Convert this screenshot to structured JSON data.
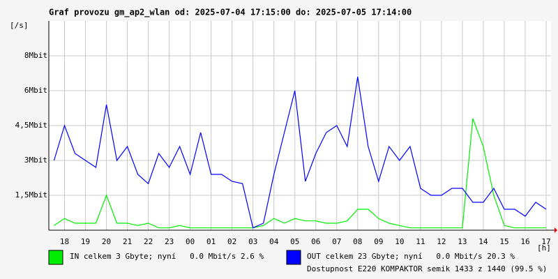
{
  "chart_data": {
    "type": "line",
    "title": "Graf provozu gm_ap2_wlan od: 2025-07-04 17:15:00 do: 2025-07-05 17:14:00",
    "y_label": "[/s]",
    "x_label": "[h]",
    "annotation": "Dostupnost E220 KOMPAKTOR semik 1433 z 1440 (99.5 %)",
    "annotation_color": "#ff0000",
    "grid": true,
    "xlim": [
      "2025-07-04 17:15",
      "2025-07-05 17:14"
    ],
    "ylim": [
      0,
      9
    ],
    "yticks": [
      {
        "value": 1.5,
        "label": "1,5Mbit"
      },
      {
        "value": 3,
        "label": "3Mbit"
      },
      {
        "value": 4.5,
        "label": "4,5Mbit"
      },
      {
        "value": 6,
        "label": "6Mbit"
      },
      {
        "value": 7.5,
        "label": "8Mbit"
      }
    ],
    "xticks": [
      {
        "value": "2025-07-04 18:00",
        "label": "18"
      },
      {
        "value": "2025-07-04 19:00",
        "label": "19"
      },
      {
        "value": "2025-07-04 20:00",
        "label": "20"
      },
      {
        "value": "2025-07-04 21:00",
        "label": "21"
      },
      {
        "value": "2025-07-04 22:00",
        "label": "22"
      },
      {
        "value": "2025-07-04 23:00",
        "label": "23"
      },
      {
        "value": "2025-07-05 00:00",
        "label": "00"
      },
      {
        "value": "2025-07-05 01:00",
        "label": "01"
      },
      {
        "value": "2025-07-05 02:00",
        "label": "02"
      },
      {
        "value": "2025-07-05 03:00",
        "label": "03"
      },
      {
        "value": "2025-07-05 04:00",
        "label": "04"
      },
      {
        "value": "2025-07-05 05:00",
        "label": "05"
      },
      {
        "value": "2025-07-05 06:00",
        "label": "06"
      },
      {
        "value": "2025-07-05 07:00",
        "label": "07"
      },
      {
        "value": "2025-07-05 08:00",
        "label": "08"
      },
      {
        "value": "2025-07-05 09:00",
        "label": "09"
      },
      {
        "value": "2025-07-05 10:00",
        "label": "10"
      },
      {
        "value": "2025-07-05 11:00",
        "label": "11"
      },
      {
        "value": "2025-07-05 12:00",
        "label": "12"
      },
      {
        "value": "2025-07-05 13:00",
        "label": "13"
      },
      {
        "value": "2025-07-05 14:00",
        "label": "14"
      },
      {
        "value": "2025-07-05 15:00",
        "label": "15"
      },
      {
        "value": "2025-07-05 16:00",
        "label": "16"
      },
      {
        "value": "2025-07-05 17:00",
        "label": "17"
      }
    ],
    "x": [
      "2025-07-04 17:30",
      "2025-07-04 18:00",
      "2025-07-04 18:30",
      "2025-07-04 19:00",
      "2025-07-04 19:30",
      "2025-07-04 20:00",
      "2025-07-04 20:30",
      "2025-07-04 21:00",
      "2025-07-04 21:30",
      "2025-07-04 22:00",
      "2025-07-04 22:30",
      "2025-07-04 23:00",
      "2025-07-04 23:30",
      "2025-07-05 00:00",
      "2025-07-05 00:30",
      "2025-07-05 01:00",
      "2025-07-05 01:30",
      "2025-07-05 02:00",
      "2025-07-05 02:30",
      "2025-07-05 03:00",
      "2025-07-05 03:30",
      "2025-07-05 04:00",
      "2025-07-05 04:30",
      "2025-07-05 05:00",
      "2025-07-05 05:30",
      "2025-07-05 06:00",
      "2025-07-05 06:30",
      "2025-07-05 07:00",
      "2025-07-05 07:30",
      "2025-07-05 08:00",
      "2025-07-05 08:30",
      "2025-07-05 09:00",
      "2025-07-05 09:30",
      "2025-07-05 10:00",
      "2025-07-05 10:30",
      "2025-07-05 11:00",
      "2025-07-05 11:30",
      "2025-07-05 12:00",
      "2025-07-05 12:30",
      "2025-07-05 13:00",
      "2025-07-05 13:30",
      "2025-07-05 14:00",
      "2025-07-05 14:30",
      "2025-07-05 15:00",
      "2025-07-05 15:30",
      "2025-07-05 16:00",
      "2025-07-05 16:30",
      "2025-07-05 17:00"
    ],
    "series": [
      {
        "name": "IN celkem 3 Gbyte; nyní   0.0 Mbit/s 2.6 %",
        "color": "#00ee00",
        "values": [
          0.2,
          0.5,
          0.3,
          0.3,
          0.3,
          1.5,
          0.3,
          0.3,
          0.2,
          0.3,
          0.1,
          0.1,
          0.2,
          0.1,
          0.1,
          0.1,
          0.1,
          0.1,
          0.1,
          0.1,
          0.2,
          0.5,
          0.3,
          0.5,
          0.4,
          0.4,
          0.3,
          0.3,
          0.4,
          0.9,
          0.9,
          0.5,
          0.3,
          0.2,
          0.1,
          0.1,
          0.1,
          0.1,
          0.1,
          0.1,
          4.8,
          3.6,
          1.5,
          0.2,
          0.1,
          0.1,
          0.1,
          0.1
        ]
      },
      {
        "name": "OUT celkem 23 Gbyte; nyní   0.0 Mbit/s 20.3 %",
        "color": "#0000ff",
        "values": [
          3.0,
          4.5,
          3.3,
          3.0,
          2.7,
          5.4,
          3.0,
          3.6,
          2.4,
          2.0,
          3.3,
          2.7,
          3.6,
          2.4,
          4.2,
          2.4,
          2.4,
          2.1,
          2.0,
          0.1,
          0.3,
          2.4,
          4.2,
          6.0,
          2.1,
          3.3,
          4.2,
          4.5,
          3.6,
          6.6,
          3.6,
          2.1,
          3.6,
          3.0,
          3.6,
          1.8,
          1.5,
          1.5,
          1.8,
          1.8,
          1.2,
          1.2,
          1.8,
          0.9,
          0.9,
          0.6,
          1.2,
          0.9
        ]
      }
    ]
  }
}
